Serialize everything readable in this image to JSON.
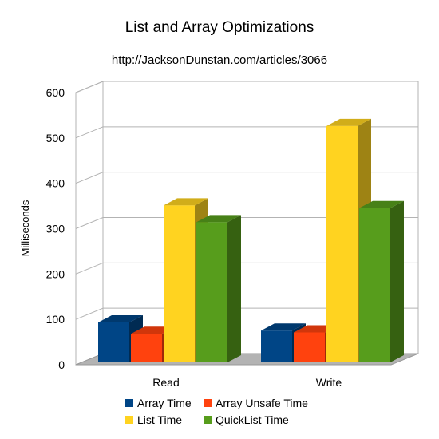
{
  "chart_data": {
    "type": "bar",
    "title": "List and Array Optimizations",
    "subtitle": "http://JacksonDunstan.com/articles/3066",
    "xlabel": "",
    "ylabel": "Milliseconds",
    "ylim": [
      0,
      600
    ],
    "yticks": [
      0,
      100,
      200,
      300,
      400,
      500,
      600
    ],
    "grid": true,
    "legend_position": "bottom",
    "categories": [
      "Read",
      "Write"
    ],
    "series": [
      {
        "name": "Array Time",
        "values": [
          88,
          70
        ],
        "color": "#004586"
      },
      {
        "name": "Array Unsafe Time",
        "values": [
          63,
          66
        ],
        "color": "#ff420e"
      },
      {
        "name": "List Time",
        "values": [
          346,
          521
        ],
        "color": "#ffd320"
      },
      {
        "name": "QuickList Time",
        "values": [
          309,
          340
        ],
        "color": "#579d1c"
      }
    ]
  }
}
